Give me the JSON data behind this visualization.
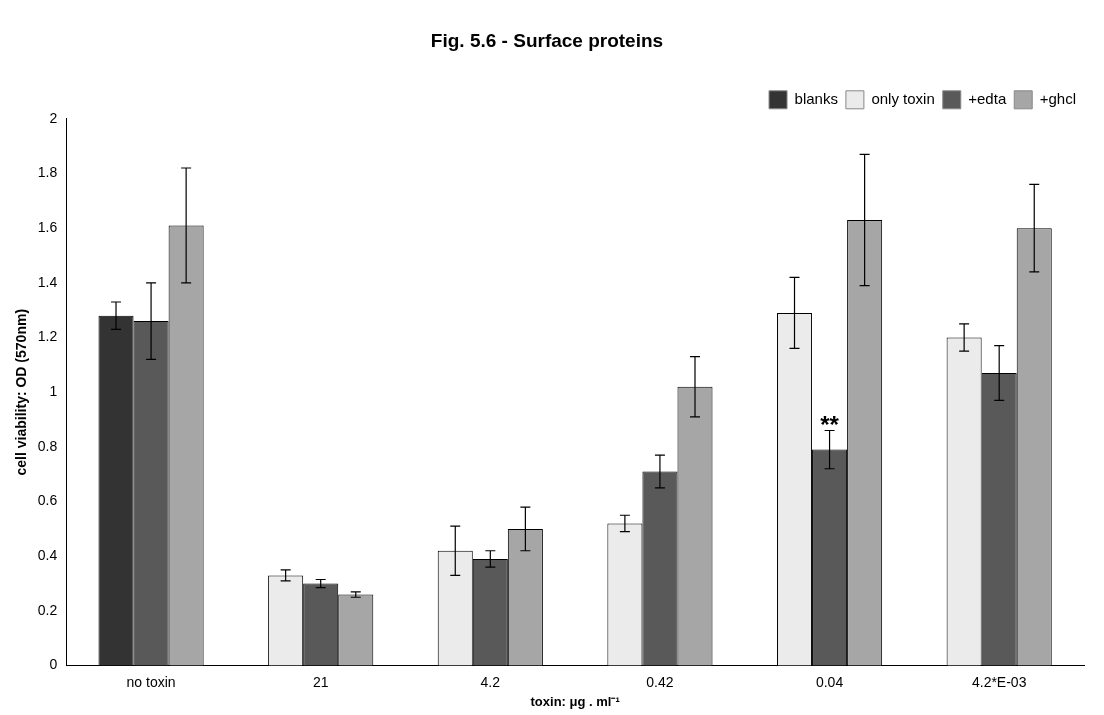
{
  "chart_data": {
    "type": "bar",
    "title": "Fig. 5.6 - Surface proteins",
    "xlabel": "toxin: μg . ml⁻¹",
    "ylabel": "cell viability: OD (570nm)",
    "categories": [
      "no toxin",
      "21",
      "4.2",
      "0.42",
      "0.04",
      "4.2*E-03"
    ],
    "series": [
      {
        "name": "blanks",
        "color": "#333333",
        "values": [
          1.28,
          null,
          null,
          null,
          null,
          null
        ],
        "errors": [
          0.05,
          null,
          null,
          null,
          null,
          null
        ]
      },
      {
        "name": "only toxin",
        "color": "#ebebeb",
        "values": [
          null,
          0.33,
          0.42,
          0.52,
          1.29,
          1.2
        ],
        "errors": [
          null,
          0.02,
          0.09,
          0.03,
          0.13,
          0.05
        ]
      },
      {
        "name": "+edta",
        "color": "#595959",
        "values": [
          1.26,
          0.3,
          0.39,
          0.71,
          0.79,
          1.07
        ],
        "errors": [
          0.14,
          0.015,
          0.03,
          0.06,
          0.07,
          0.1
        ]
      },
      {
        "name": "+ghcl",
        "color": "#a6a6a6",
        "values": [
          1.61,
          0.26,
          0.5,
          1.02,
          1.63,
          1.6
        ],
        "errors": [
          0.21,
          0.01,
          0.08,
          0.11,
          0.24,
          0.16
        ]
      }
    ],
    "annotations": [
      {
        "text": "**",
        "x": "0.04",
        "y": 0.86
      }
    ],
    "ylim": [
      0,
      2
    ],
    "yticks": [
      0,
      0.2,
      0.4,
      0.6,
      0.8,
      1,
      1.2,
      1.4,
      1.6,
      1.8,
      2
    ],
    "grid": false,
    "legend": "top right"
  }
}
